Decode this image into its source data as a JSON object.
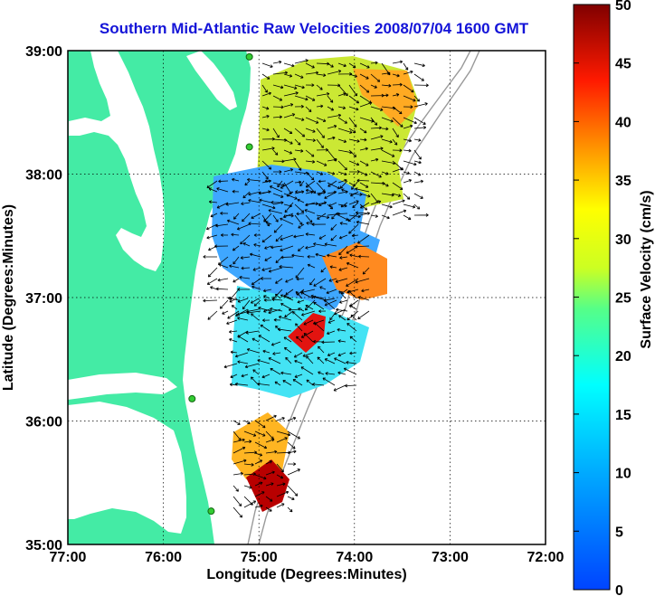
{
  "title": "Southern Mid-Atlantic Raw Velocities 2008/07/04 1600 GMT",
  "map": {
    "xlabel": "Longitude (Degrees:Minutes)",
    "ylabel": "Latitude (Degrees:Minutes)",
    "x_ticks": [
      "77:00",
      "76:00",
      "75:00",
      "74:00",
      "73:00",
      "72:00"
    ],
    "y_ticks": [
      "39:00",
      "38:00",
      "37:00",
      "36:00",
      "35:00"
    ],
    "lon_range": [
      -77,
      -72
    ],
    "lat_range": [
      35,
      39
    ],
    "grid": true,
    "land_color": "#44eba5",
    "water_color": "#ffffff"
  },
  "colorbar": {
    "label": "Surface Velocity (cm/s)",
    "ticks": [
      "50",
      "45",
      "40",
      "35",
      "30",
      "25",
      "20",
      "15",
      "10",
      "5",
      "0"
    ],
    "range": [
      0,
      50
    ],
    "colormap": [
      "#0000ff",
      "#00ffff",
      "#ffff00",
      "#ff0000",
      "#800000"
    ]
  },
  "stations": [
    {
      "lon": -75.1,
      "lat": 38.95
    },
    {
      "lon": -75.1,
      "lat": 38.22
    },
    {
      "lon": -75.7,
      "lat": 36.18
    },
    {
      "lon": -75.5,
      "lat": 35.27
    }
  ]
}
